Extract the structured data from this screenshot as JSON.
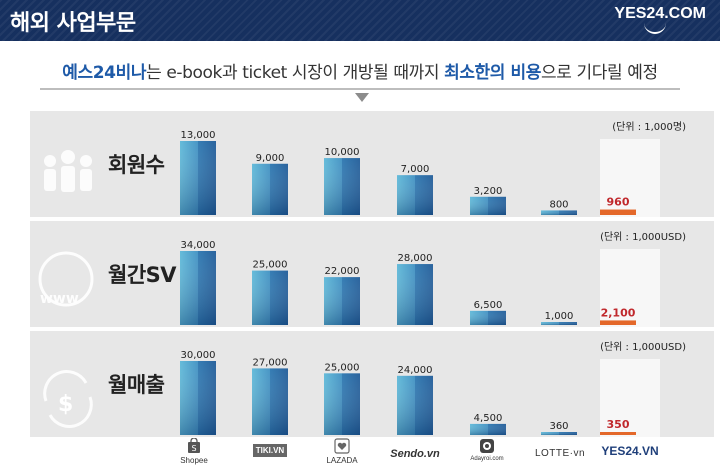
{
  "header": {
    "title": "해외 사업부문",
    "logo_text": "YES24.COM"
  },
  "subtitle": {
    "part1": "예스24비나",
    "part2": "는 e-book과 ticket 시장이 개방될 때까지 ",
    "part3": "최소한의 비용",
    "part4": "으로 기다릴 예정"
  },
  "colors": {
    "header_bg": "#16305f",
    "bar_light": "#5db8d8",
    "bar_dark": "#1f5b98",
    "highlight_bar": "#e4682a",
    "highlight_label": "#c0282c",
    "accent_text": "#1e5aa8"
  },
  "companies": [
    "Shopee",
    "TIKI.VN",
    "LAZADA",
    "Sendo.vn",
    "Adayroi.com",
    "LOTTE·vn",
    "YES24.VN"
  ],
  "chart_data": [
    {
      "type": "bar",
      "title": "회원수",
      "unit": "(단위 : 1,000명)",
      "categories": [
        "Shopee",
        "TIKI.VN",
        "LAZADA",
        "Sendo.vn",
        "Adayroi.com",
        "LOTTE·vn",
        "YES24.VN"
      ],
      "values": [
        13000,
        9000,
        10000,
        7000,
        3200,
        800,
        960
      ],
      "labels": [
        "13,000",
        "9,000",
        "10,000",
        "7,000",
        "3,200",
        "800",
        "960"
      ],
      "highlight_index": 6
    },
    {
      "type": "bar",
      "title": "월간SV",
      "unit": "(단위 : 1,000USD)",
      "categories": [
        "Shopee",
        "TIKI.VN",
        "LAZADA",
        "Sendo.vn",
        "Adayroi.com",
        "LOTTE·vn",
        "YES24.VN"
      ],
      "values": [
        34000,
        25000,
        22000,
        28000,
        6500,
        1000,
        2100
      ],
      "labels": [
        "34,000",
        "25,000",
        "22,000",
        "28,000",
        "6,500",
        "1,000",
        "2,100"
      ],
      "highlight_index": 6
    },
    {
      "type": "bar",
      "title": "월매출",
      "unit": "(단위 : 1,000USD)",
      "categories": [
        "Shopee",
        "TIKI.VN",
        "LAZADA",
        "Sendo.vn",
        "Adayroi.com",
        "LOTTE·vn",
        "YES24.VN"
      ],
      "values": [
        30000,
        27000,
        25000,
        24000,
        4500,
        360,
        350
      ],
      "labels": [
        "30,000",
        "27,000",
        "25,000",
        "24,000",
        "4,500",
        "360",
        "350"
      ],
      "highlight_index": 6
    }
  ]
}
